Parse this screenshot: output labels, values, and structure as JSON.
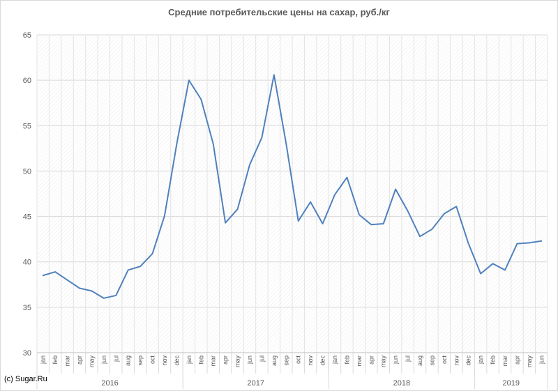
{
  "chart_data": {
    "type": "line",
    "title": "Средние потребительские цены на сахар, руб./кг",
    "xlabel": "",
    "ylabel": "",
    "ylim": [
      30,
      65
    ],
    "yticks": [
      30,
      35,
      40,
      45,
      50,
      55,
      60,
      65
    ],
    "grid": true,
    "legend": "none",
    "line_color": "#4f81bd",
    "categories": [
      "jan",
      "feb",
      "mar",
      "apr",
      "may",
      "jun",
      "jul",
      "aug",
      "sep",
      "oct",
      "nov",
      "dec",
      "jan",
      "feb",
      "mar",
      "apr",
      "may",
      "jun",
      "jul",
      "aug",
      "sep",
      "oct",
      "nov",
      "dec",
      "jan",
      "feb",
      "mar",
      "apr",
      "may",
      "jun",
      "jul",
      "aug",
      "sep",
      "oct",
      "nov",
      "dec",
      "jan",
      "feb",
      "mar",
      "apr",
      "may",
      "jun"
    ],
    "years": [
      {
        "label": "2016",
        "months": 12
      },
      {
        "label": "2017",
        "months": 12
      },
      {
        "label": "2018",
        "months": 12
      },
      {
        "label": "2019",
        "months": 6
      }
    ],
    "series": [
      {
        "values": [
          38.5,
          38.9,
          38.0,
          37.1,
          36.8,
          36.0,
          36.3,
          39.1,
          39.5,
          40.9,
          45.1,
          53.0,
          60.0,
          57.9,
          53.0,
          44.3,
          45.8,
          50.7,
          53.7,
          60.6,
          53.0,
          44.5,
          46.6,
          44.2,
          47.4,
          49.3,
          45.2,
          44.1,
          44.2,
          48.0,
          45.6,
          42.8,
          43.6,
          45.3,
          46.1,
          42.0,
          38.7,
          39.8,
          39.1,
          42.0,
          42.1,
          42.3
        ]
      }
    ]
  },
  "footer": {
    "credit": "(c) Sugar.Ru"
  }
}
